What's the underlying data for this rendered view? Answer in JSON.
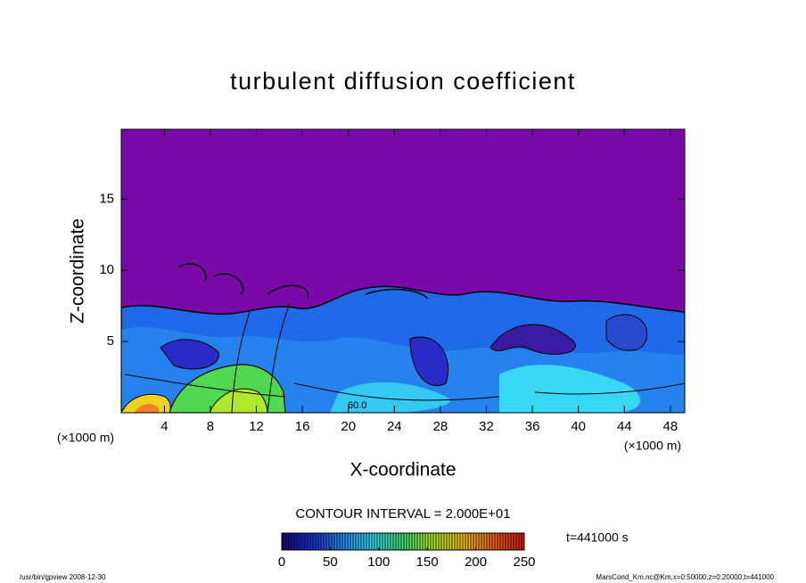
{
  "chart_data": {
    "type": "contour",
    "title": "turbulent diffusion coefficient",
    "x_label": "X-coordinate",
    "y_label": "Z-coordinate",
    "x_unit_label": "(×1000 m)",
    "xlim": [
      0.25,
      49.25
    ],
    "xticks": [
      4,
      8,
      12,
      16,
      20,
      24,
      28,
      32,
      36,
      40,
      44,
      48
    ],
    "ylim": [
      0,
      19.9
    ],
    "yticks": [
      5,
      10,
      15
    ],
    "contour_label": "60.0",
    "contour_interval": "CONTOUR INTERVAL = 2.000E+01",
    "time_label": "t=441000 s",
    "colorbar": {
      "lim": [
        0,
        250
      ],
      "ticks": [
        0,
        50,
        100,
        150,
        200,
        250
      ],
      "colors": [
        "#1a0a6e",
        "#1a2fd0",
        "#2a8cf0",
        "#38d8f0",
        "#40e070",
        "#b0e830",
        "#f0c020",
        "#f06020",
        "#d01818"
      ]
    },
    "footer_left": "/usr/bin/gpview   2008-12-30",
    "footer_right": "MarsCond_Km.nc@Km,x=0:50000,z=0:20000,t=441000"
  }
}
